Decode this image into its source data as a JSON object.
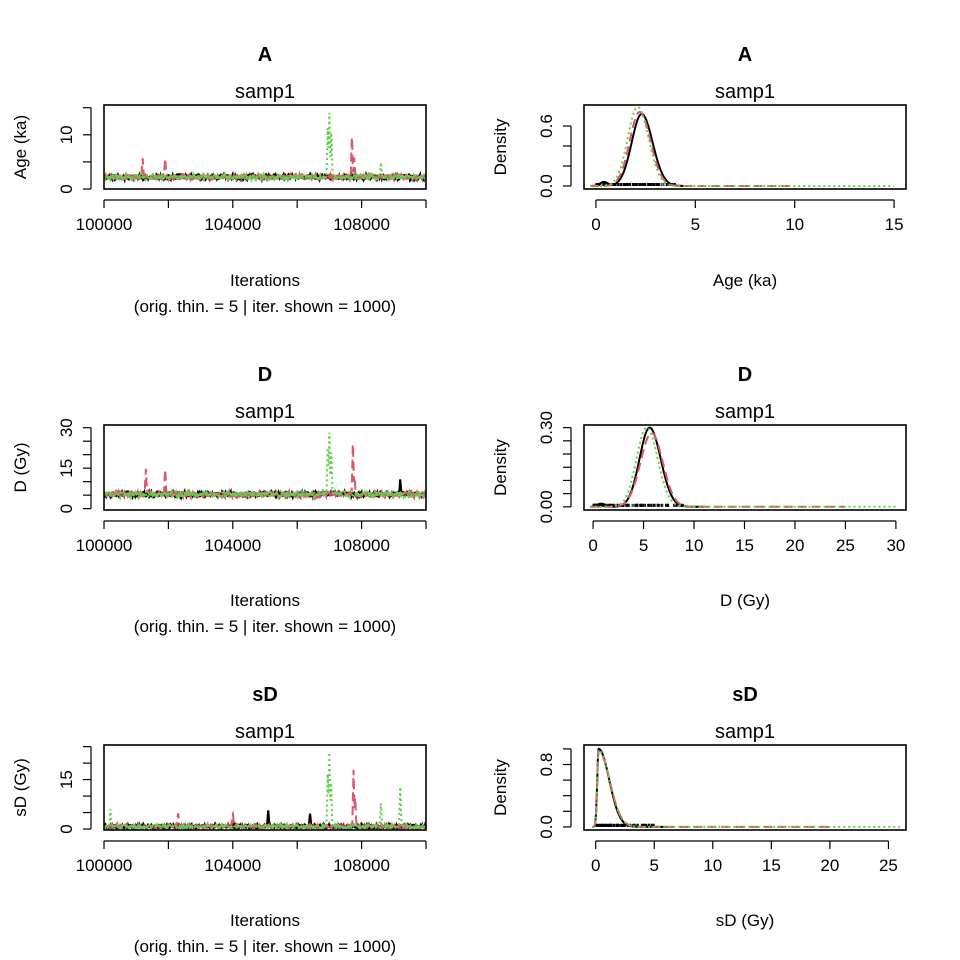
{
  "chart_data": [
    {
      "type": "line",
      "plot": "trace",
      "title": "A",
      "subtitle": "samp1",
      "xlabel": "Iterations",
      "xlabel2": "(orig. thin. = 5 | iter. shown = 1000)",
      "ylabel": "Age (ka)",
      "xlim": [
        100000,
        110000
      ],
      "ylim": [
        0,
        15.5
      ],
      "xticks": [
        {
          "v": 100000,
          "label": "100000"
        },
        {
          "v": 104000,
          "label": "104000"
        },
        {
          "v": 108000,
          "label": "108000"
        }
      ],
      "xminor": [
        102000,
        106000,
        110000
      ],
      "yticks": [
        {
          "v": 0,
          "label": "0"
        },
        {
          "v": 10,
          "label": "10"
        }
      ],
      "yminor": [
        5,
        15
      ],
      "series": [
        {
          "color": "#000000",
          "dash": "",
          "base": 2.2,
          "noise": 0.6,
          "seed": 11,
          "spikes": []
        },
        {
          "color": "#DF536B",
          "dash": "9,5",
          "base": 2.2,
          "noise": 0.6,
          "seed": 23,
          "spikes": [
            [
              101200,
              5.8
            ],
            [
              101900,
              5.8
            ],
            [
              107700,
              10
            ],
            [
              107770,
              6
            ]
          ]
        },
        {
          "color": "#61D04F",
          "dash": "2,3",
          "base": 2.2,
          "noise": 0.6,
          "seed": 37,
          "spikes": [
            [
              106950,
              12
            ],
            [
              107000,
              15
            ],
            [
              107060,
              11
            ],
            [
              108600,
              5
            ]
          ]
        }
      ]
    },
    {
      "type": "line",
      "plot": "density",
      "title": "A",
      "subtitle": "samp1",
      "xlabel": "Age (ka)",
      "ylabel": "Density",
      "xlim": [
        -0.6,
        15.6
      ],
      "ylim": [
        -0.03,
        0.81
      ],
      "xticks": [
        {
          "v": 0,
          "label": "0"
        },
        {
          "v": 5,
          "label": "5"
        },
        {
          "v": 10,
          "label": "10"
        },
        {
          "v": 15,
          "label": "15"
        }
      ],
      "yticks": [
        {
          "v": 0,
          "label": "0.0"
        },
        {
          "v": 0.6,
          "label": "0.6"
        }
      ],
      "yminor": [
        0.2,
        0.4
      ],
      "rug": [
        0,
        4
      ],
      "series": [
        {
          "color": "#000000",
          "dash": "",
          "peak_x": 2.3,
          "peak_y": 0.72,
          "sl": 0.5,
          "sr": 0.55,
          "xmax": 4.5,
          "bumps": [
            [
              0.4,
              0.04,
              0.2
            ]
          ]
        },
        {
          "color": "#DF536B",
          "dash": "9,5",
          "peak_x": 2.2,
          "peak_y": 0.74,
          "sl": 0.5,
          "sr": 0.55,
          "xmax": 10,
          "bumps": []
        },
        {
          "color": "#61D04F",
          "dash": "2,3",
          "peak_x": 2.1,
          "peak_y": 0.79,
          "sl": 0.5,
          "sr": 0.55,
          "xmax": 15,
          "bumps": []
        }
      ]
    },
    {
      "type": "line",
      "plot": "trace",
      "title": "D",
      "subtitle": "samp1",
      "xlabel": "Iterations",
      "xlabel2": "(orig. thin. = 5 | iter. shown = 1000)",
      "ylabel": "D (Gy)",
      "xlim": [
        100000,
        110000
      ],
      "ylim": [
        -0.5,
        31
      ],
      "xticks": [
        {
          "v": 100000,
          "label": "100000"
        },
        {
          "v": 104000,
          "label": "104000"
        },
        {
          "v": 108000,
          "label": "108000"
        }
      ],
      "xminor": [
        102000,
        106000,
        110000
      ],
      "yticks": [
        {
          "v": 0,
          "label": "0"
        },
        {
          "v": 15,
          "label": "15"
        },
        {
          "v": 30,
          "label": "30"
        }
      ],
      "yminor": [
        5,
        10,
        20,
        25
      ],
      "series": [
        {
          "color": "#000000",
          "dash": "",
          "base": 5.3,
          "noise": 1.3,
          "seed": 13,
          "spikes": [
            [
              104600,
              1
            ],
            [
              109200,
              11
            ]
          ]
        },
        {
          "color": "#DF536B",
          "dash": "9,5",
          "base": 5.3,
          "noise": 1.3,
          "seed": 29,
          "spikes": [
            [
              101300,
              15
            ],
            [
              101900,
              15
            ],
            [
              107730,
              25
            ],
            [
              107780,
              12
            ]
          ]
        },
        {
          "color": "#61D04F",
          "dash": "2,3",
          "base": 5.3,
          "noise": 1.3,
          "seed": 41,
          "spikes": [
            [
              106950,
              24
            ],
            [
              107000,
              30
            ],
            [
              107060,
              22
            ]
          ]
        }
      ]
    },
    {
      "type": "line",
      "plot": "density",
      "title": "D",
      "subtitle": "samp1",
      "xlabel": "D (Gy)",
      "ylabel": "Density",
      "xlim": [
        -0.9,
        31
      ],
      "ylim": [
        -0.012,
        0.31
      ],
      "xticks": [
        {
          "v": 0,
          "label": "0"
        },
        {
          "v": 5,
          "label": "5"
        },
        {
          "v": 10,
          "label": "10"
        },
        {
          "v": 15,
          "label": "15"
        },
        {
          "v": 20,
          "label": "20"
        },
        {
          "v": 25,
          "label": "25"
        },
        {
          "v": 30,
          "label": "30"
        }
      ],
      "yticks": [
        {
          "v": 0,
          "label": "0.00"
        },
        {
          "v": 0.3,
          "label": "0.30"
        }
      ],
      "yminor": [
        0.05,
        0.1,
        0.15,
        0.2,
        0.25
      ],
      "rug": [
        0,
        9
      ],
      "series": [
        {
          "color": "#000000",
          "dash": "",
          "peak_x": 5.6,
          "peak_y": 0.3,
          "sl": 1.0,
          "sr": 1.1,
          "xmax": 11,
          "bumps": [
            [
              0.8,
              0.012,
              0.4
            ]
          ]
        },
        {
          "color": "#DF536B",
          "dash": "9,5",
          "peak_x": 5.8,
          "peak_y": 0.28,
          "sl": 1.1,
          "sr": 1.1,
          "xmax": 25,
          "bumps": []
        },
        {
          "color": "#61D04F",
          "dash": "2,3",
          "peak_x": 5.3,
          "peak_y": 0.3,
          "sl": 1.0,
          "sr": 1.1,
          "xmax": 30,
          "bumps": []
        }
      ]
    },
    {
      "type": "line",
      "plot": "trace",
      "title": "sD",
      "subtitle": "samp1",
      "xlabel": "Iterations",
      "xlabel2": "(orig. thin. = 5 | iter. shown = 1000)",
      "ylabel": "sD (Gy)",
      "xlim": [
        100000,
        110000
      ],
      "ylim": [
        -0.3,
        25.5
      ],
      "xticks": [
        {
          "v": 100000,
          "label": "100000"
        },
        {
          "v": 104000,
          "label": "104000"
        },
        {
          "v": 108000,
          "label": "108000"
        }
      ],
      "xminor": [
        102000,
        106000,
        110000
      ],
      "yticks": [
        {
          "v": 0,
          "label": "0"
        },
        {
          "v": 15,
          "label": "15"
        }
      ],
      "yminor": [
        5,
        10,
        20,
        25
      ],
      "series": [
        {
          "color": "#000000",
          "dash": "",
          "base": 0.8,
          "noise": 0.6,
          "seed": 17,
          "spikes": [
            [
              105100,
              6
            ],
            [
              106400,
              5
            ]
          ]
        },
        {
          "color": "#DF536B",
          "dash": "9,5",
          "base": 0.8,
          "noise": 0.6,
          "seed": 31,
          "spikes": [
            [
              102300,
              5
            ],
            [
              104000,
              5
            ],
            [
              107750,
              19
            ],
            [
              107800,
              10
            ]
          ]
        },
        {
          "color": "#61D04F",
          "dash": "2,3",
          "base": 0.8,
          "noise": 0.6,
          "seed": 43,
          "spikes": [
            [
              100200,
              6
            ],
            [
              106950,
              18
            ],
            [
              107000,
              25
            ],
            [
              107050,
              15
            ],
            [
              108600,
              8
            ],
            [
              109200,
              13
            ]
          ]
        }
      ]
    },
    {
      "type": "line",
      "plot": "density",
      "title": "sD",
      "subtitle": "samp1",
      "xlabel": "sD (Gy)",
      "ylabel": "Density",
      "xlim": [
        -1,
        26.5
      ],
      "ylim": [
        -0.04,
        1.05
      ],
      "xticks": [
        {
          "v": 0,
          "label": "0"
        },
        {
          "v": 5,
          "label": "5"
        },
        {
          "v": 10,
          "label": "10"
        },
        {
          "v": 15,
          "label": "15"
        },
        {
          "v": 20,
          "label": "20"
        },
        {
          "v": 25,
          "label": "25"
        }
      ],
      "yticks": [
        {
          "v": 0,
          "label": "0.0"
        },
        {
          "v": 0.8,
          "label": "0.8"
        }
      ],
      "yminor": [
        0.2,
        0.4,
        0.6,
        1.0
      ],
      "rug": [
        0,
        5
      ],
      "series": [
        {
          "color": "#000000",
          "dash": "",
          "peak_x": 0.25,
          "peak_y": 1.0,
          "sl": 0.12,
          "sr": 0.9,
          "xmin": -0.3,
          "xmax": 6,
          "bumps": []
        },
        {
          "color": "#DF536B",
          "dash": "9,5",
          "peak_x": 0.25,
          "peak_y": 0.97,
          "sl": 0.12,
          "sr": 0.95,
          "xmin": -0.3,
          "xmax": 20,
          "bumps": []
        },
        {
          "color": "#61D04F",
          "dash": "2,3",
          "peak_x": 0.25,
          "peak_y": 0.98,
          "sl": 0.12,
          "sr": 0.95,
          "xmin": -0.3,
          "xmax": 26,
          "bumps": []
        }
      ]
    }
  ]
}
